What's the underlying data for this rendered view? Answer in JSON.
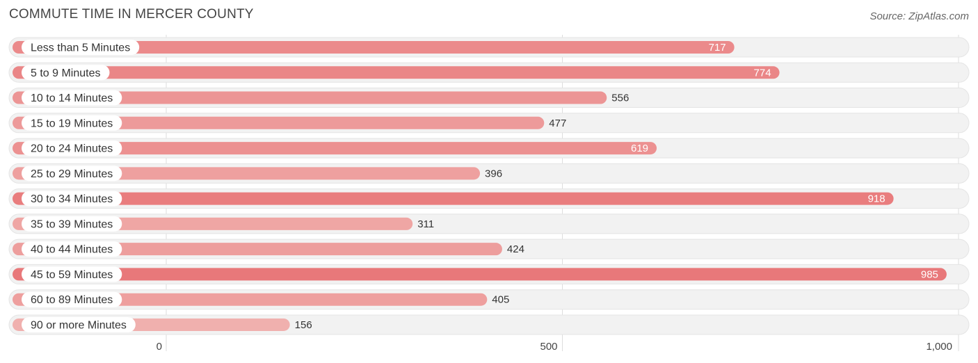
{
  "header": {
    "title": "COMMUTE TIME IN MERCER COUNTY",
    "source": "Source: ZipAtlas.com"
  },
  "colors": {
    "bar_strong": "#e8787a",
    "bar_light": "#f0b0ae",
    "track": "#f2f2f2",
    "grid": "#dddddd"
  },
  "chart_data": {
    "type": "bar",
    "orientation": "horizontal",
    "title": "COMMUTE TIME IN MERCER COUNTY",
    "categories": [
      "Less than 5 Minutes",
      "5 to 9 Minutes",
      "10 to 14 Minutes",
      "15 to 19 Minutes",
      "20 to 24 Minutes",
      "25 to 29 Minutes",
      "30 to 34 Minutes",
      "35 to 39 Minutes",
      "40 to 44 Minutes",
      "45 to 59 Minutes",
      "60 to 89 Minutes",
      "90 or more Minutes"
    ],
    "values": [
      717,
      774,
      556,
      477,
      619,
      396,
      918,
      311,
      424,
      985,
      405,
      156
    ],
    "xlim": [
      0,
      1000
    ],
    "ticks": [
      0,
      500,
      1000
    ],
    "tick_labels": [
      "0",
      "500",
      "1,000"
    ],
    "grid": true
  }
}
